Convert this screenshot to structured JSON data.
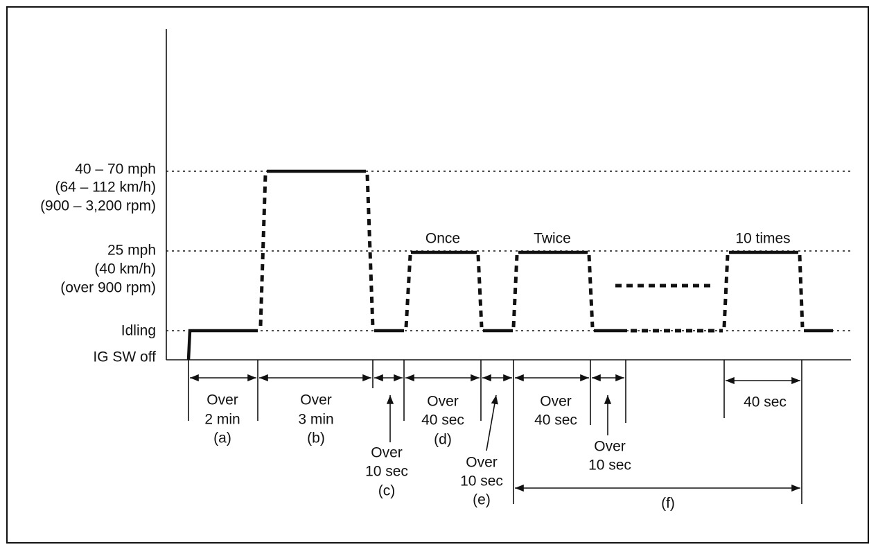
{
  "levels": [
    {
      "lines": [
        "40 – 70 mph",
        "(64 – 112 km/h)",
        "(900 – 3,200 rpm)"
      ]
    },
    {
      "lines": [
        "25 mph",
        "(40 km/h)",
        "(over 900 rpm)"
      ]
    },
    {
      "lines": [
        "Idling"
      ]
    },
    {
      "lines": [
        "IG SW off"
      ]
    }
  ],
  "repeats": [
    "Once",
    "Twice",
    "10 times"
  ],
  "intervals": [
    {
      "lines": [
        "Over",
        "2 min",
        "(a)"
      ]
    },
    {
      "lines": [
        "Over",
        "3 min",
        "(b)"
      ]
    },
    {
      "lines": [
        "Over",
        "10 sec",
        "(c)"
      ]
    },
    {
      "lines": [
        "Over",
        "40 sec",
        "(d)"
      ]
    },
    {
      "lines": [
        "Over",
        "10 sec",
        "(e)"
      ]
    },
    {
      "lines": [
        "Over",
        "40 sec"
      ]
    },
    {
      "lines": [
        "Over",
        "10 sec"
      ]
    },
    {
      "lines": [
        "40 sec"
      ]
    },
    {
      "lines": [
        "(f)"
      ]
    }
  ]
}
